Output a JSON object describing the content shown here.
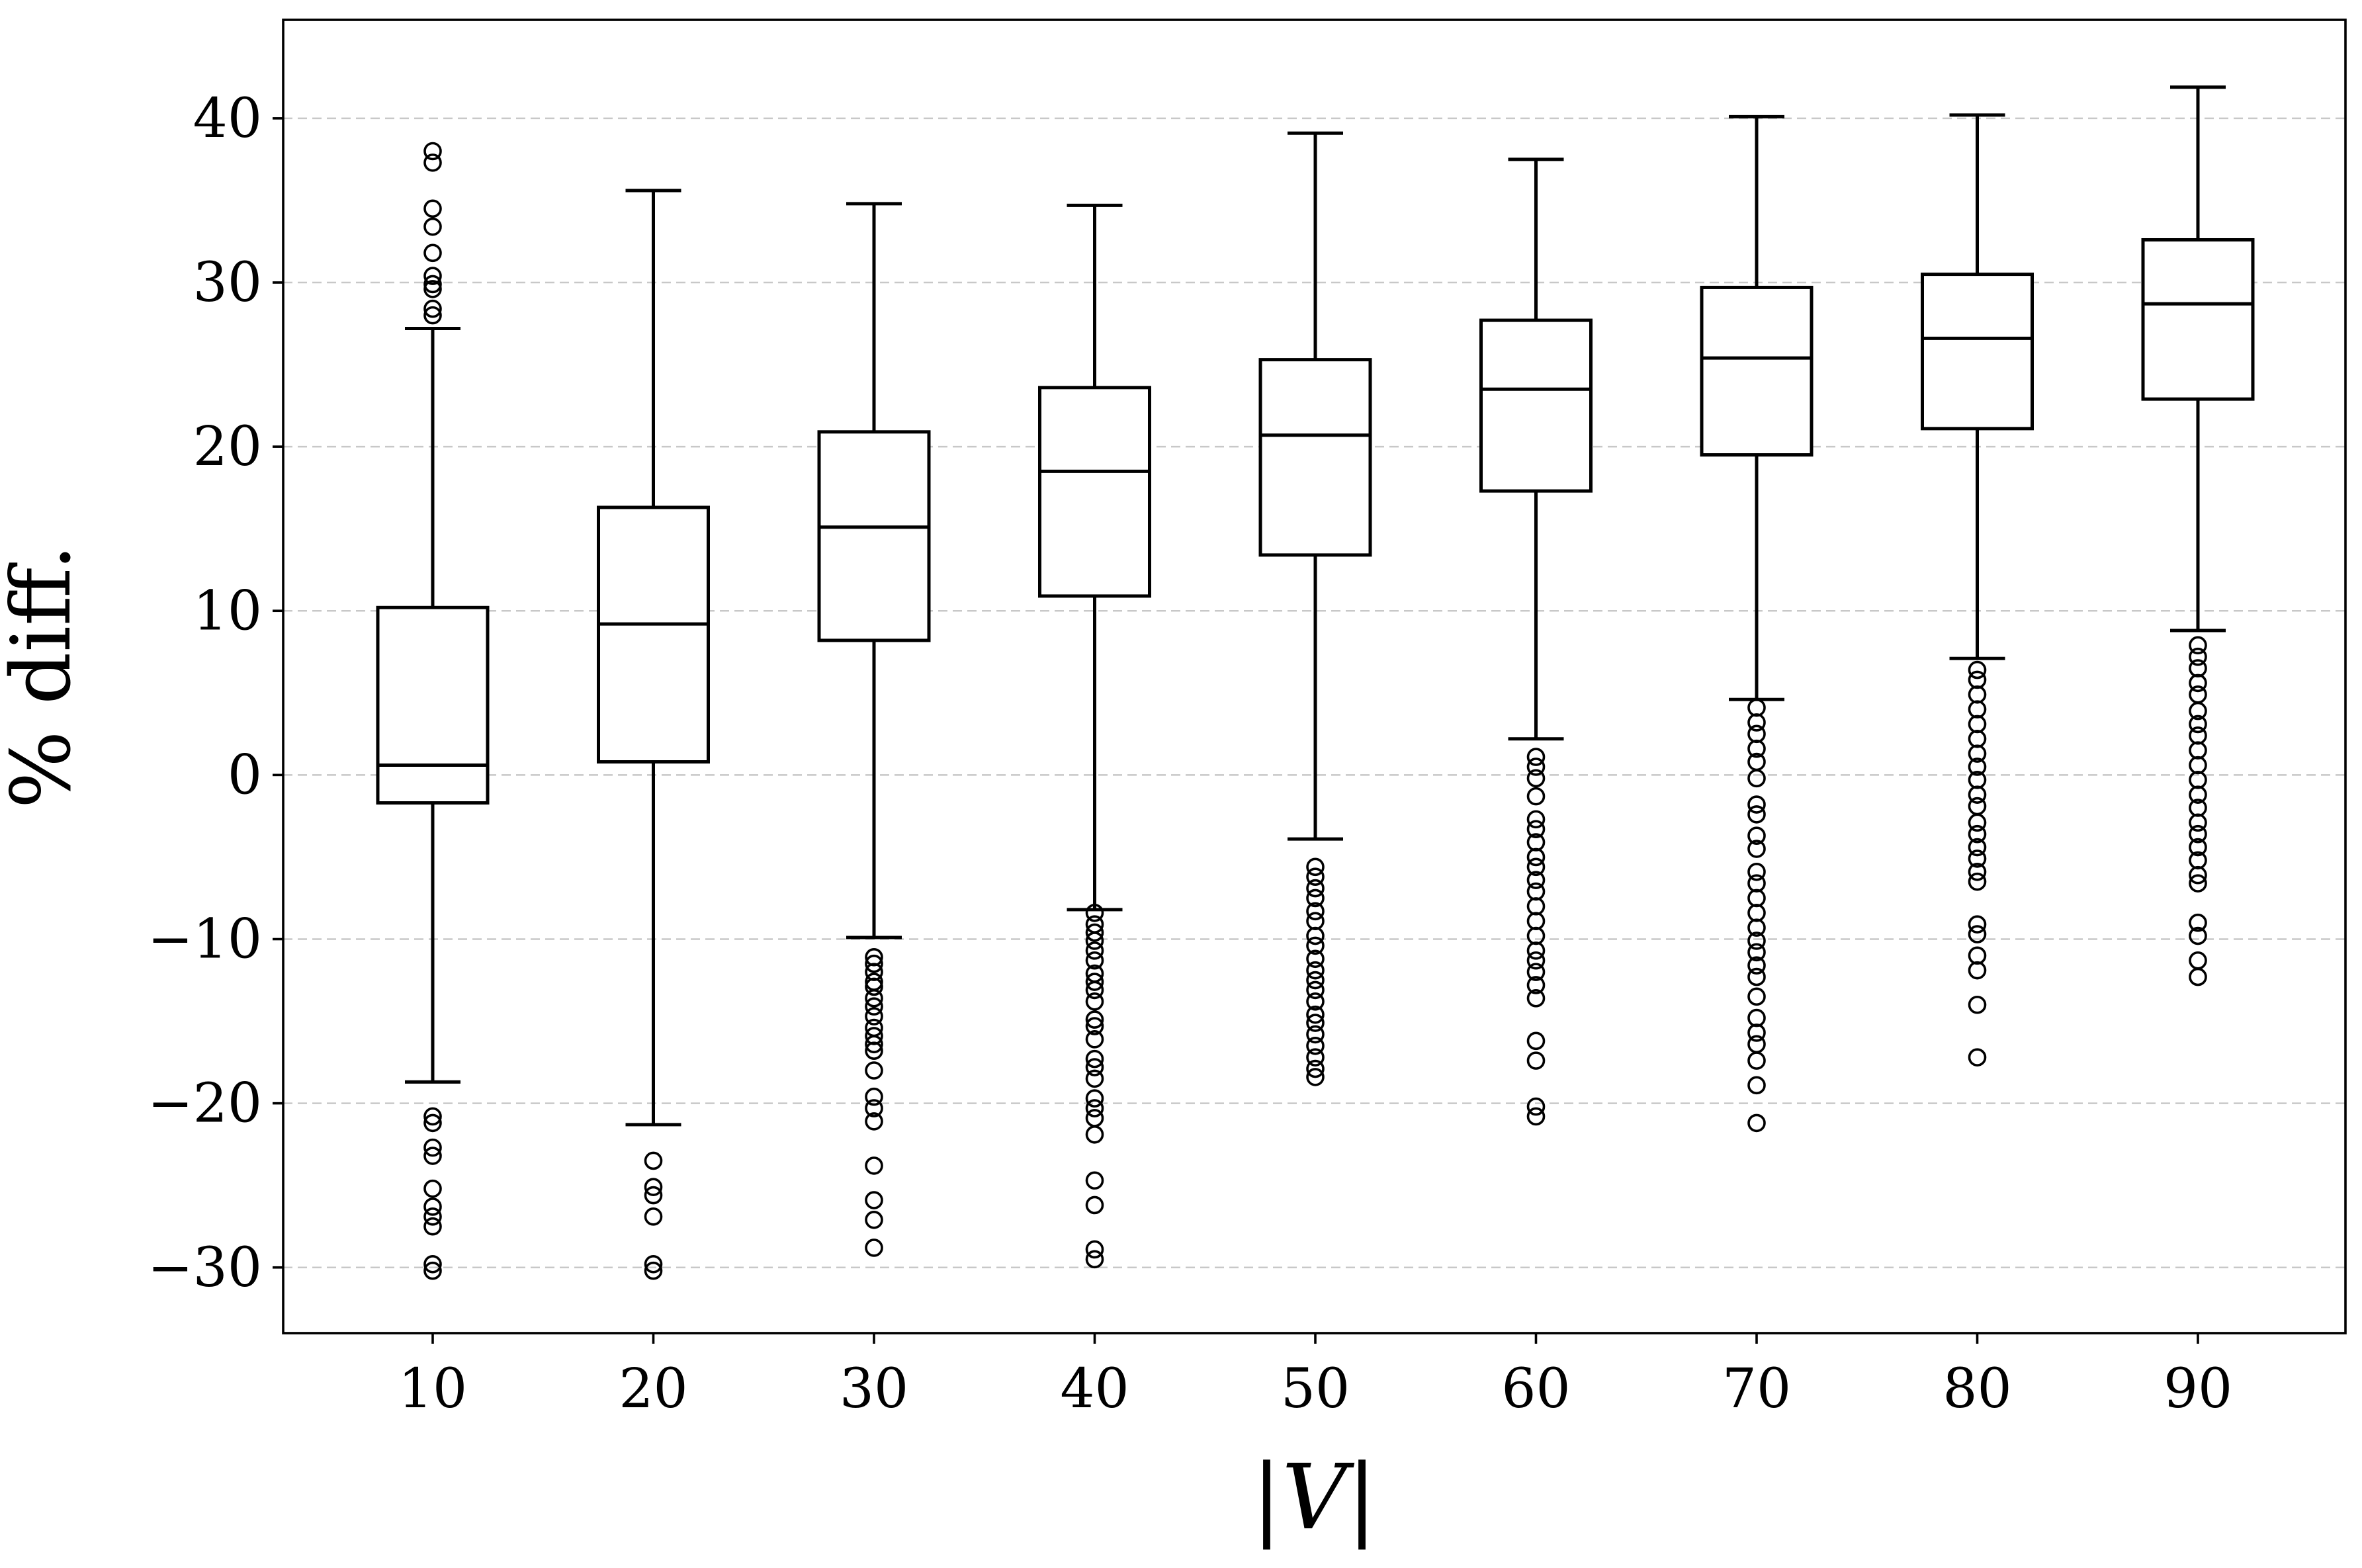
{
  "chart_data": {
    "type": "boxplot",
    "xlabel": "|V|",
    "ylabel": "% diff.",
    "ylim": [
      -34,
      46
    ],
    "yticks": [
      -30,
      -20,
      -10,
      0,
      10,
      20,
      30,
      40
    ],
    "ytick_labels": [
      "−30",
      "−20",
      "−10",
      "0",
      "10",
      "20",
      "30",
      "40"
    ],
    "grid": "horizontal-dashed",
    "categories": [
      "10",
      "20",
      "30",
      "40",
      "50",
      "60",
      "70",
      "80",
      "90"
    ],
    "boxes": [
      {
        "category": "10",
        "whisker_low": -18.7,
        "q1": -1.7,
        "median": 0.6,
        "q3": 10.2,
        "whisker_high": 27.2,
        "fliers": [
          38.0,
          37.3,
          34.5,
          33.4,
          31.8,
          30.4,
          29.9,
          29.6,
          28.4,
          28.0,
          -20.8,
          -21.2,
          -22.7,
          -23.2,
          -25.2,
          -26.3,
          -26.9,
          -27.5,
          -29.8,
          -30.2
        ]
      },
      {
        "category": "20",
        "whisker_low": -21.3,
        "q1": 0.8,
        "median": 9.2,
        "q3": 16.3,
        "whisker_high": 35.6,
        "fliers": [
          -23.5,
          -25.1,
          -25.6,
          -26.9,
          -29.8,
          -30.2
        ]
      },
      {
        "category": "30",
        "whisker_low": -9.9,
        "q1": 8.2,
        "median": 15.1,
        "q3": 20.9,
        "whisker_high": 34.8,
        "fliers": [
          -11.1,
          -11.5,
          -12.0,
          -12.6,
          -12.9,
          -13.6,
          -14.1,
          -14.7,
          -15.4,
          -15.9,
          -16.4,
          -16.8,
          -18.0,
          -19.6,
          -20.3,
          -21.1,
          -23.8,
          -25.9,
          -27.1,
          -28.8
        ]
      },
      {
        "category": "40",
        "whisker_low": -8.2,
        "q1": 10.9,
        "median": 18.5,
        "q3": 23.6,
        "whisker_high": 34.7,
        "fliers": [
          -8.4,
          -9.1,
          -9.6,
          -10.1,
          -10.7,
          -11.3,
          -12.1,
          -12.6,
          -13.1,
          -13.8,
          -14.9,
          -15.3,
          -16.1,
          -17.3,
          -17.8,
          -18.5,
          -19.7,
          -20.3,
          -20.9,
          -21.9,
          -24.7,
          -26.2,
          -28.9,
          -29.5
        ]
      },
      {
        "category": "50",
        "whisker_low": -3.9,
        "q1": 13.4,
        "median": 20.7,
        "q3": 25.3,
        "whisker_high": 39.1,
        "fliers": [
          -5.6,
          -6.2,
          -6.9,
          -7.5,
          -8.3,
          -8.9,
          -9.8,
          -10.4,
          -11.2,
          -11.9,
          -12.5,
          -13.1,
          -13.8,
          -14.6,
          -15.1,
          -15.8,
          -16.5,
          -17.2,
          -17.9,
          -18.4
        ]
      },
      {
        "category": "60",
        "whisker_low": 2.2,
        "q1": 17.3,
        "median": 23.5,
        "q3": 27.7,
        "whisker_high": 37.5,
        "fliers": [
          1.1,
          0.5,
          -0.2,
          -1.3,
          -2.7,
          -3.3,
          -4.1,
          -5.0,
          -5.6,
          -6.4,
          -7.1,
          -8.0,
          -8.9,
          -9.8,
          -10.7,
          -11.3,
          -12.0,
          -12.8,
          -13.6,
          -16.2,
          -17.4,
          -20.2,
          -20.8
        ]
      },
      {
        "category": "70",
        "whisker_low": 4.6,
        "q1": 19.5,
        "median": 25.4,
        "q3": 29.7,
        "whisker_high": 40.1,
        "fliers": [
          4.1,
          3.2,
          2.5,
          1.6,
          0.8,
          -0.2,
          -1.8,
          -2.4,
          -3.7,
          -4.5,
          -5.9,
          -6.6,
          -7.5,
          -8.4,
          -9.3,
          -10.1,
          -10.8,
          -11.6,
          -12.3,
          -13.5,
          -14.8,
          -15.7,
          -16.4,
          -17.4,
          -18.9,
          -21.2
        ]
      },
      {
        "category": "80",
        "whisker_low": 7.1,
        "q1": 21.1,
        "median": 26.6,
        "q3": 30.5,
        "whisker_high": 40.2,
        "fliers": [
          6.4,
          5.8,
          4.9,
          4.0,
          3.1,
          2.2,
          1.3,
          0.5,
          -0.3,
          -1.2,
          -1.9,
          -2.9,
          -3.6,
          -4.4,
          -5.1,
          -5.9,
          -6.5,
          -9.1,
          -9.7,
          -11.0,
          -11.9,
          -14.0,
          -17.2
        ]
      },
      {
        "category": "90",
        "whisker_low": 8.8,
        "q1": 22.9,
        "median": 28.7,
        "q3": 32.6,
        "whisker_high": 41.9,
        "fliers": [
          7.9,
          7.2,
          6.5,
          5.6,
          4.9,
          3.9,
          3.1,
          2.4,
          1.5,
          0.6,
          -0.3,
          -1.2,
          -2.0,
          -2.9,
          -3.6,
          -4.4,
          -5.2,
          -6.1,
          -6.6,
          -9.0,
          -9.8,
          -11.3,
          -12.3
        ]
      }
    ]
  }
}
